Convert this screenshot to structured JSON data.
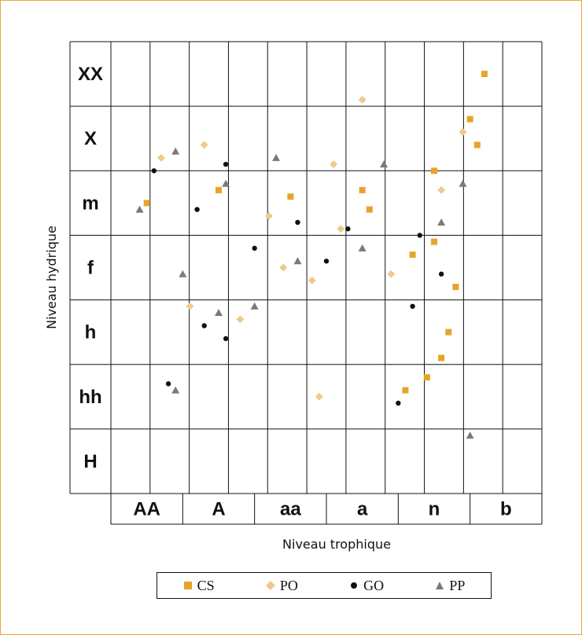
{
  "chart_data": {
    "type": "scatter",
    "xlabel": "Niveau trophique",
    "ylabel": "Niveau hydrique",
    "x_categories": [
      "AA",
      "A",
      "aa",
      "a",
      "n",
      "b"
    ],
    "y_categories": [
      "XX",
      "X",
      "m",
      "f",
      "h",
      "hh",
      "H"
    ],
    "grid": true,
    "legend_position": "bottom",
    "series": [
      {
        "name": "CS",
        "color": "#e8a32a",
        "marker": "square",
        "points": [
          [
            0.5,
            2.5
          ],
          [
            1.5,
            2.3
          ],
          [
            2.5,
            2.4
          ],
          [
            3.5,
            2.3
          ],
          [
            4.5,
            2.0
          ],
          [
            5.0,
            1.2
          ],
          [
            5.2,
            0.5
          ],
          [
            4.7,
            4.5
          ],
          [
            4.4,
            5.2
          ],
          [
            3.6,
            2.6
          ],
          [
            4.2,
            3.3
          ],
          [
            4.5,
            3.1
          ],
          [
            4.8,
            3.8
          ],
          [
            4.6,
            4.9
          ],
          [
            5.1,
            1.6
          ],
          [
            4.1,
            5.4
          ]
        ]
      },
      {
        "name": "PO",
        "color": "#f0c98c",
        "marker": "diamond",
        "points": [
          [
            0.7,
            1.8
          ],
          [
            1.3,
            1.6
          ],
          [
            2.2,
            2.7
          ],
          [
            3.1,
            1.9
          ],
          [
            3.2,
            2.9
          ],
          [
            3.9,
            3.6
          ],
          [
            4.6,
            2.3
          ],
          [
            1.8,
            4.3
          ],
          [
            2.8,
            3.7
          ],
          [
            3.5,
            0.9
          ],
          [
            2.9,
            5.5
          ],
          [
            4.9,
            1.4
          ],
          [
            1.1,
            4.1
          ],
          [
            2.4,
            3.5
          ]
        ]
      },
      {
        "name": "GO",
        "color": "#111111",
        "marker": "circle",
        "points": [
          [
            0.6,
            2.0
          ],
          [
            1.2,
            2.6
          ],
          [
            1.6,
            1.9
          ],
          [
            2.0,
            3.2
          ],
          [
            2.6,
            2.8
          ],
          [
            3.3,
            2.9
          ],
          [
            4.3,
            3.0
          ],
          [
            4.6,
            3.6
          ],
          [
            1.3,
            4.4
          ],
          [
            3.0,
            3.4
          ],
          [
            4.2,
            4.1
          ],
          [
            1.6,
            4.6
          ],
          [
            0.8,
            5.3
          ],
          [
            4.0,
            5.6
          ]
        ]
      },
      {
        "name": "PP",
        "color": "#7a7a7a",
        "marker": "triangle",
        "points": [
          [
            0.4,
            2.6
          ],
          [
            0.9,
            1.7
          ],
          [
            1.6,
            2.2
          ],
          [
            2.3,
            1.8
          ],
          [
            1.0,
            3.6
          ],
          [
            1.5,
            4.2
          ],
          [
            2.6,
            3.4
          ],
          [
            3.5,
            3.2
          ],
          [
            4.6,
            2.8
          ],
          [
            2.0,
            4.1
          ],
          [
            3.8,
            1.9
          ],
          [
            0.9,
            5.4
          ],
          [
            4.9,
            2.2
          ],
          [
            5.0,
            6.1
          ]
        ]
      }
    ]
  },
  "legend": {
    "items": [
      {
        "label": "CS",
        "marker": "square",
        "color": "#e8a32a"
      },
      {
        "label": "PO",
        "marker": "diamond",
        "color": "#f0c98c"
      },
      {
        "label": "GO",
        "marker": "circle",
        "color": "#111111"
      },
      {
        "label": "PP",
        "marker": "triangle",
        "color": "#7a7a7a"
      }
    ]
  }
}
